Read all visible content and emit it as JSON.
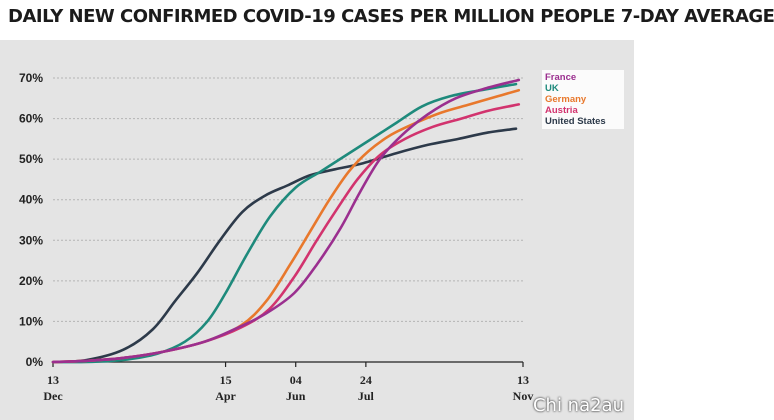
{
  "title": "DAILY NEW CONFIRMED COVID-19 CASES PER MILLION PEOPLE 7-DAY AVERAGE",
  "watermark": "Chi na2au",
  "colors": {
    "background": "#e4e4e4",
    "grid": "#b4b4b4",
    "axis": "#222222",
    "legend_box": "#ffffff"
  },
  "chart_data": {
    "type": "line",
    "title": "DAILY NEW CONFIRMED COVID-19 CASES PER MILLION PEOPLE 7-DAY AVERAGE",
    "xlabel": "",
    "ylabel": "",
    "x_scale": "date",
    "xlim": [
      "2020-12-13",
      "2021-11-13"
    ],
    "ylim": [
      0,
      70
    ],
    "grid": true,
    "legend_placement": "top-right",
    "y_ticks": [
      0,
      10,
      20,
      30,
      40,
      50,
      60,
      70
    ],
    "y_tick_labels": [
      "0%",
      "10%",
      "20%",
      "30%",
      "40%",
      "50%",
      "60%",
      "70%"
    ],
    "x_ticks": [
      {
        "date": "2020-12-13",
        "day": "13",
        "month": "Dec"
      },
      {
        "date": "2021-04-15",
        "day": "15",
        "month": "Apr"
      },
      {
        "date": "2021-06-04",
        "day": "04",
        "month": "Jun"
      },
      {
        "date": "2021-07-24",
        "day": "24",
        "month": "Jul"
      },
      {
        "date": "2021-11-13",
        "day": "13",
        "month": "Nov"
      }
    ],
    "series": [
      {
        "name": "United States",
        "color": "#2d3a4a",
        "x": [
          "2020-12-13",
          "2021-01-06",
          "2021-02-01",
          "2021-02-22",
          "2021-03-10",
          "2021-03-26",
          "2021-04-11",
          "2021-04-27",
          "2021-05-13",
          "2021-05-29",
          "2021-06-14",
          "2021-07-02",
          "2021-07-22",
          "2021-08-15",
          "2021-09-06",
          "2021-09-28",
          "2021-10-18",
          "2021-11-08"
        ],
        "y": [
          0,
          0.5,
          3,
          8,
          15,
          22,
          30,
          37,
          41,
          43.5,
          46,
          47.5,
          49,
          51.5,
          53.5,
          55,
          56.5,
          57.5
        ]
      },
      {
        "name": "UK",
        "color": "#1e8a7c",
        "x": [
          "2020-12-13",
          "2021-01-06",
          "2021-02-01",
          "2021-02-25",
          "2021-03-17",
          "2021-04-02",
          "2021-04-15",
          "2021-05-01",
          "2021-05-17",
          "2021-06-04",
          "2021-06-22",
          "2021-07-10",
          "2021-07-28",
          "2021-08-15",
          "2021-09-02",
          "2021-09-22",
          "2021-10-14",
          "2021-11-08"
        ],
        "y": [
          0,
          0,
          0.5,
          2,
          5,
          10,
          17,
          27,
          36,
          43,
          47,
          51,
          55,
          59,
          63,
          65.5,
          67,
          68.5
        ]
      },
      {
        "name": "Germany",
        "color": "#e8782c",
        "x": [
          "2020-12-13",
          "2021-01-06",
          "2021-02-01",
          "2021-03-01",
          "2021-03-31",
          "2021-04-26",
          "2021-05-14",
          "2021-05-31",
          "2021-06-14",
          "2021-06-28",
          "2021-07-12",
          "2021-07-26",
          "2021-08-11",
          "2021-08-29",
          "2021-09-16",
          "2021-10-06",
          "2021-10-26",
          "2021-11-10"
        ],
        "y": [
          0,
          0.3,
          1,
          2.5,
          5,
          9,
          15,
          24,
          32,
          40,
          47,
          52,
          56,
          59,
          61.5,
          63.5,
          65.5,
          67
        ]
      },
      {
        "name": "Austria",
        "color": "#d2336e",
        "x": [
          "2020-12-13",
          "2021-01-06",
          "2021-02-01",
          "2021-03-01",
          "2021-03-31",
          "2021-04-26",
          "2021-05-16",
          "2021-06-03",
          "2021-06-19",
          "2021-07-04",
          "2021-07-18",
          "2021-08-03",
          "2021-08-21",
          "2021-09-10",
          "2021-09-30",
          "2021-10-20",
          "2021-11-10"
        ],
        "y": [
          0,
          0.3,
          1,
          2.5,
          5,
          8.5,
          13,
          21,
          30,
          38,
          45,
          51,
          55,
          58,
          60,
          62,
          63.5
        ]
      },
      {
        "name": "France",
        "color": "#9b2f8f",
        "x": [
          "2020-12-13",
          "2021-01-06",
          "2021-02-01",
          "2021-03-01",
          "2021-03-31",
          "2021-04-24",
          "2021-05-14",
          "2021-06-03",
          "2021-06-19",
          "2021-07-06",
          "2021-07-20",
          "2021-08-03",
          "2021-08-19",
          "2021-09-06",
          "2021-09-26",
          "2021-10-18",
          "2021-11-10"
        ],
        "y": [
          0,
          0.3,
          1,
          2.5,
          5,
          8.5,
          12,
          17,
          24,
          33,
          42,
          50,
          56,
          61,
          65,
          67.5,
          69.5
        ]
      }
    ],
    "legend_order": [
      "France",
      "UK",
      "Germany",
      "Austria",
      "United States"
    ]
  }
}
